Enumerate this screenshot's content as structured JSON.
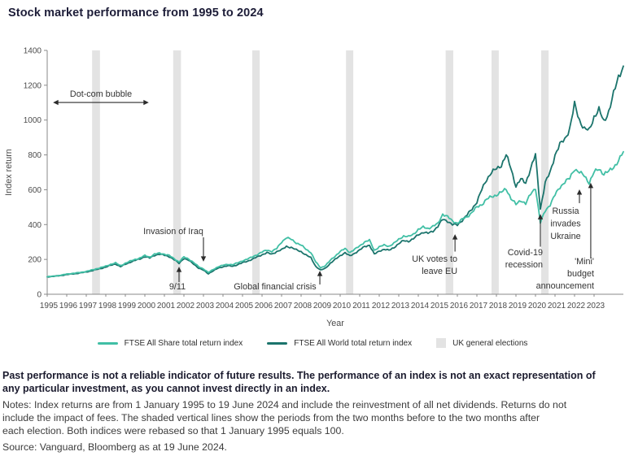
{
  "title": "Stock market performance from 1995 to 2024",
  "chart_data": {
    "type": "line",
    "title": "Stock market performance from 1995 to 2024",
    "xlabel": "Year",
    "ylabel": "Index return",
    "x_start": 1995,
    "x_step": 0.25,
    "x_range": [
      1995,
      2024.5
    ],
    "ylim": [
      0,
      1400
    ],
    "y_ticks": [
      0,
      200,
      400,
      600,
      800,
      1000,
      1200,
      1400
    ],
    "x_ticks": [
      1995,
      1996,
      1997,
      1998,
      1999,
      2000,
      2001,
      2002,
      2003,
      2004,
      2005,
      2006,
      2007,
      2008,
      2009,
      2010,
      2011,
      2012,
      2013,
      2014,
      2015,
      2016,
      2017,
      2018,
      2019,
      2020,
      2021,
      2022,
      2023
    ],
    "colors": {
      "band": "#e3e3e3",
      "axis": "#8a8a8a",
      "annotation": "#2b2b2b"
    },
    "band_label": "UK general elections",
    "election_bands": [
      [
        1997.3,
        1997.7
      ],
      [
        2001.45,
        2001.85
      ],
      [
        2005.5,
        2005.88
      ],
      [
        2010.3,
        2010.67
      ],
      [
        2015.4,
        2015.79
      ],
      [
        2017.75,
        2018.12
      ],
      [
        2020.29,
        2020.67
      ]
    ],
    "series": [
      {
        "name": "FTSE All Share total return index",
        "color": "#41bfa5",
        "data_name": "ftse-all-share-line",
        "values": [
          100,
          103,
          106,
          110,
          116,
          119,
          122,
          126,
          131,
          138,
          146,
          153,
          161,
          172,
          180,
          164,
          178,
          190,
          200,
          208,
          222,
          214,
          230,
          236,
          230,
          222,
          204,
          186,
          214,
          202,
          182,
          158,
          146,
          124,
          142,
          158,
          166,
          172,
          170,
          180,
          192,
          202,
          214,
          228,
          242,
          254,
          246,
          262,
          300,
          325,
          315,
          295,
          282,
          258,
          240,
          185,
          152,
          165,
          195,
          220,
          245,
          262,
          240,
          258,
          278,
          300,
          310,
          252,
          272,
          282,
          276,
          292,
          315,
          335,
          330,
          345,
          372,
          385,
          378,
          390,
          405,
          460,
          445,
          420,
          408,
          430,
          445,
          470,
          500,
          515,
          545,
          560,
          570,
          585,
          605,
          550,
          515,
          540,
          520,
          575,
          612,
          410,
          480,
          515,
          570,
          615,
          645,
          665,
          720,
          700,
          680,
          640,
          700,
          720,
          690,
          705,
          730,
          765,
          818
        ]
      },
      {
        "name": "FTSE All World total return index",
        "color": "#1b746c",
        "data_name": "ftse-all-world-line",
        "values": [
          100,
          102,
          105,
          108,
          113,
          116,
          119,
          123,
          128,
          134,
          141,
          148,
          156,
          166,
          174,
          158,
          172,
          184,
          194,
          203,
          216,
          208,
          224,
          230,
          224,
          216,
          198,
          178,
          206,
          194,
          174,
          150,
          138,
          118,
          134,
          150,
          158,
          163,
          161,
          170,
          181,
          190,
          201,
          214,
          227,
          238,
          230,
          245,
          255,
          275,
          268,
          255,
          245,
          225,
          210,
          160,
          138,
          150,
          178,
          200,
          222,
          238,
          220,
          236,
          254,
          274,
          282,
          230,
          248,
          258,
          252,
          268,
          290,
          308,
          304,
          318,
          342,
          356,
          350,
          362,
          390,
          430,
          420,
          400,
          398,
          425,
          455,
          490,
          530,
          600,
          660,
          700,
          720,
          740,
          800,
          720,
          620,
          660,
          640,
          720,
          800,
          490,
          640,
          700,
          800,
          860,
          890,
          950,
          1090,
          1000,
          950,
          940,
          1020,
          1060,
          990,
          1050,
          1150,
          1250,
          1310
        ]
      }
    ],
    "annotations": [
      {
        "id": "dotcom-bubble",
        "type": "span",
        "label_lines": [
          "Dot-com bubble"
        ],
        "x1_year": 1995.3,
        "x2_year": 2000.2,
        "y_value": 1101,
        "label": {
          "anchor": "middle",
          "x": 124,
          "y": 64,
          "lh": 15
        }
      },
      {
        "id": "nine-eleven",
        "type": "arrow",
        "dir": "up",
        "label_lines": [
          "9/11"
        ],
        "arrow": {
          "x_year": 2001.75,
          "tip_value": 158,
          "tail_value": 70
        },
        "label": {
          "anchor": "middle",
          "x": 218,
          "y": 301,
          "lh": 15
        }
      },
      {
        "id": "invasion-of-iraq",
        "type": "arrow",
        "dir": "down",
        "label_lines": [
          "Invasion of Iraq"
        ],
        "arrow": {
          "x_year": 2003.0,
          "tip_value": 187,
          "tail_value": 327
        },
        "label": {
          "anchor": "middle",
          "x": 213,
          "y": 233,
          "lh": 15
        }
      },
      {
        "id": "global-financial-crisis",
        "type": "arrow",
        "dir": "up",
        "label_lines": [
          "Global financial crisis"
        ],
        "arrow": {
          "x_year": 2008.96,
          "tip_value": 135,
          "tail_value": 56
        },
        "label": {
          "anchor": "middle",
          "x": 338,
          "y": 301,
          "lh": 15
        }
      },
      {
        "id": "uk-votes-to-leave-eu",
        "type": "arrow",
        "dir": "up",
        "label_lines": [
          "UK votes to",
          "leave EU"
        ],
        "arrow": {
          "x_year": 2015.88,
          "tip_value": 345,
          "tail_value": 245
        },
        "label": {
          "anchor": "end",
          "x": 562,
          "y": 267,
          "lh": 15
        }
      },
      {
        "id": "covid-19-recession",
        "type": "arrow",
        "dir": "up",
        "label_lines": [
          "Covid-19",
          "recession"
        ],
        "arrow": {
          "x_year": 2020.25,
          "tip_value": 460,
          "tail_value": 273
        },
        "label": {
          "anchor": "end",
          "x": 667,
          "y": 259,
          "lh": 15
        }
      },
      {
        "id": "russia-invades-ukraine",
        "type": "arrow",
        "dir": "up",
        "label_lines": [
          "Russia",
          "invades",
          "Ukraine"
        ],
        "arrow": {
          "x_year": 2022.25,
          "tip_value": 602,
          "tail_value": 523
        },
        "label": {
          "anchor": "middle",
          "x": 695,
          "y": 208,
          "lh": 15.5
        }
      },
      {
        "id": "mini-budget-announcement",
        "type": "arrow",
        "dir": "up",
        "label_lines": [
          "'Mini'",
          "budget",
          "announcement"
        ],
        "arrow": {
          "x_year": 2022.83,
          "tip_value": 640,
          "tail_value": 205
        },
        "label": {
          "anchor": "end",
          "x": 730,
          "y": 270,
          "lh": 15
        }
      }
    ]
  },
  "footer": {
    "disclaimer_lines": [
      "Past performance is not a reliable indicator of future results. The performance of an index is not an exact representation of",
      "any particular investment, as you cannot invest directly in an index."
    ],
    "notes_lines": [
      "Notes: Index returns are from 1 January 1995 to 19 June 2024 and include the reinvestment of all net dividends. Returns do not",
      "include the impact of fees. The shaded vertical lines show the periods from the two months before to the two months after",
      "each election. Both indices were rebased so that 1 January 1995 equals 100."
    ],
    "source": "Source: Vanguard, Bloomberg as at 19 June 2024."
  }
}
